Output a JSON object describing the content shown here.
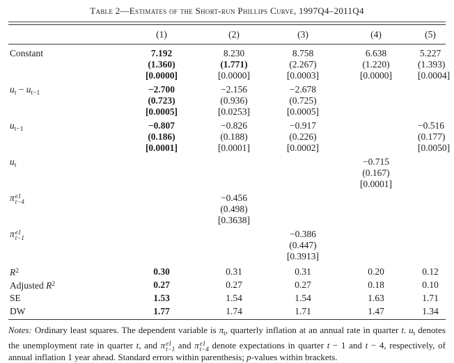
{
  "page": {
    "background": "#ffffff",
    "text_color": "#1d1d1d",
    "rule_color": "#333333"
  },
  "title": "Table 2—Estimates of the Short-run Phillips Curve, 1997Q4–2011Q4",
  "table": {
    "column_headers": [
      "(1)",
      "(2)",
      "(3)",
      "(4)",
      "(5)"
    ],
    "coef_rows": [
      {
        "name": "constant",
        "label": [
          {
            "s": "n",
            "t": "Constant"
          }
        ],
        "cells": [
          {
            "lines": [
              "7.192",
              "(1.360)",
              "[0.0000]"
            ],
            "bold": [
              true,
              true,
              true
            ]
          },
          {
            "lines": [
              "8.230",
              "(1.771)",
              "[0.0000]"
            ],
            "bold": [
              false,
              true,
              false
            ]
          },
          {
            "lines": [
              "8.758",
              "(2.267)",
              "[0.0003]"
            ],
            "bold": [
              false,
              false,
              false
            ]
          },
          {
            "lines": [
              "6.638",
              "(1.220)",
              "[0.0000]"
            ],
            "bold": [
              false,
              false,
              false
            ]
          },
          {
            "lines": [
              "5.227",
              "(1.393)",
              "[0.0004]"
            ],
            "bold": [
              false,
              false,
              false
            ]
          }
        ]
      },
      {
        "name": "u-diff",
        "label": [
          {
            "s": "i",
            "t": "u"
          },
          {
            "s": "sub",
            "t": "t"
          },
          {
            "s": "n",
            "t": " − "
          },
          {
            "s": "i",
            "t": "u"
          },
          {
            "s": "sub",
            "t": "t−1"
          }
        ],
        "cells": [
          {
            "lines": [
              "−2.700",
              "(0.723)",
              "[0.0005]"
            ],
            "bold": [
              true,
              true,
              true
            ]
          },
          {
            "lines": [
              "−2.156",
              "(0.936)",
              "[0.0253]"
            ],
            "bold": [
              false,
              false,
              false
            ]
          },
          {
            "lines": [
              "−2.678",
              "(0.725)",
              "[0.0005]"
            ],
            "bold": [
              false,
              false,
              false
            ]
          },
          null,
          null
        ]
      },
      {
        "name": "u-lag1",
        "label": [
          {
            "s": "i",
            "t": "u"
          },
          {
            "s": "sub",
            "t": "t−1"
          }
        ],
        "cells": [
          {
            "lines": [
              "−0.807",
              "(0.186)",
              "[0.0001]"
            ],
            "bold": [
              true,
              true,
              true
            ]
          },
          {
            "lines": [
              "−0.826",
              "(0.188)",
              "[0.0001]"
            ],
            "bold": [
              false,
              false,
              false
            ]
          },
          {
            "lines": [
              "−0.917",
              "(0.226)",
              "[0.0002]"
            ],
            "bold": [
              false,
              false,
              false
            ]
          },
          null,
          {
            "lines": [
              "−0.516",
              "(0.177)",
              "[0.0050]"
            ],
            "bold": [
              false,
              false,
              false
            ]
          }
        ]
      },
      {
        "name": "u-t",
        "label": [
          {
            "s": "i",
            "t": "u"
          },
          {
            "s": "sub",
            "t": "t"
          }
        ],
        "cells": [
          null,
          null,
          null,
          {
            "lines": [
              "−0.715",
              "(0.167)",
              "[0.0001]"
            ],
            "bold": [
              false,
              false,
              false
            ]
          },
          null
        ]
      },
      {
        "name": "pi-e1-t-4",
        "label": [
          {
            "s": "i",
            "t": "π"
          },
          {
            "s": "stack",
            "t": [
              "e1",
              "t−4"
            ]
          }
        ],
        "cells": [
          null,
          {
            "lines": [
              "−0.456",
              "(0.498)",
              "[0.3638]"
            ],
            "bold": [
              false,
              false,
              false
            ]
          },
          null,
          null,
          null
        ]
      },
      {
        "name": "pi-e1-t-1",
        "label": [
          {
            "s": "i",
            "t": "π"
          },
          {
            "s": "stack",
            "t": [
              "e1",
              "t−1"
            ]
          }
        ],
        "cells": [
          null,
          null,
          {
            "lines": [
              "−0.386",
              "(0.447)",
              "[0.3913]"
            ],
            "bold": [
              false,
              false,
              false
            ]
          },
          null,
          null
        ]
      }
    ],
    "stat_rows": [
      {
        "name": "r-squared",
        "label": [
          {
            "s": "i",
            "t": "R"
          },
          {
            "s": "sup",
            "t": "2"
          }
        ],
        "values": [
          "0.30",
          "0.31",
          "0.31",
          "0.20",
          "0.12"
        ],
        "bold": [
          true,
          false,
          false,
          false,
          false
        ]
      },
      {
        "name": "adjusted-r-squared",
        "label": [
          {
            "s": "n",
            "t": "Adjusted "
          },
          {
            "s": "i",
            "t": "R"
          },
          {
            "s": "sup",
            "t": "2"
          }
        ],
        "values": [
          "0.27",
          "0.27",
          "0.27",
          "0.18",
          "0.10"
        ],
        "bold": [
          true,
          false,
          false,
          false,
          false
        ]
      },
      {
        "name": "se",
        "label": [
          {
            "s": "n",
            "t": "SE"
          }
        ],
        "values": [
          "1.53",
          "1.54",
          "1.54",
          "1.63",
          "1.71"
        ],
        "bold": [
          true,
          false,
          false,
          false,
          false
        ]
      },
      {
        "name": "dw",
        "label": [
          {
            "s": "n",
            "t": "DW"
          }
        ],
        "values": [
          "1.77",
          "1.74",
          "1.71",
          "1.47",
          "1.34"
        ],
        "bold": [
          true,
          false,
          false,
          false,
          false
        ]
      }
    ]
  },
  "notes": [
    {
      "s": "i",
      "t": "Notes:"
    },
    {
      "s": "n",
      "t": " Ordinary least squares. The dependent variable is "
    },
    {
      "s": "i",
      "t": "π"
    },
    {
      "s": "sub",
      "t": "t"
    },
    {
      "s": "n",
      "t": ", quarterly inflation at an annual rate in quarter "
    },
    {
      "s": "i",
      "t": "t"
    },
    {
      "s": "n",
      "t": ". "
    },
    {
      "s": "i",
      "t": "u"
    },
    {
      "s": "sub",
      "t": "t"
    },
    {
      "s": "n",
      "t": " denotes the unemployment rate in quarter "
    },
    {
      "s": "i",
      "t": "t"
    },
    {
      "s": "n",
      "t": ", and "
    },
    {
      "s": "i",
      "t": "π"
    },
    {
      "s": "stack",
      "t": [
        "e1",
        "t−1"
      ]
    },
    {
      "s": "n",
      "t": " and "
    },
    {
      "s": "i",
      "t": "π"
    },
    {
      "s": "stack",
      "t": [
        "e1",
        "t−4"
      ]
    },
    {
      "s": "n",
      "t": " denote expectations in quarter "
    },
    {
      "s": "i",
      "t": "t"
    },
    {
      "s": "n",
      "t": " − 1 and "
    },
    {
      "s": "i",
      "t": "t"
    },
    {
      "s": "n",
      "t": " − 4, respectively, of annual inflation 1 year ahead. Standard errors within parenthesis; "
    },
    {
      "s": "i",
      "t": "p"
    },
    {
      "s": "n",
      "t": "-values within brackets."
    }
  ]
}
